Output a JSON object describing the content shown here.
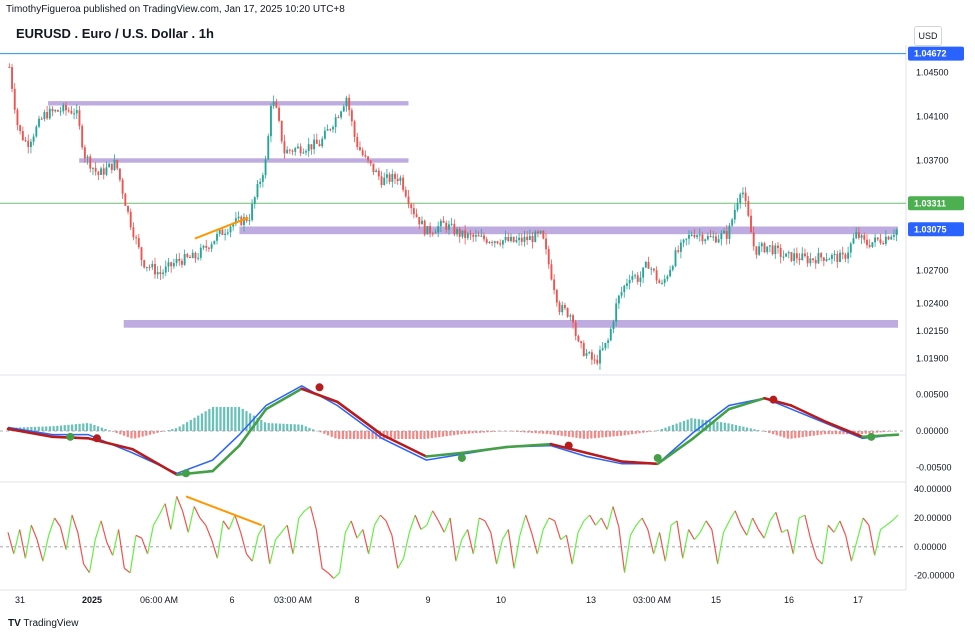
{
  "header": {
    "published": "TimothyFigueroa published on TradingView.com, Jan 17, 2025 10:20 UTC+8",
    "title": "EURUSD . Euro / U.S. Dollar . 1h",
    "currency": "USD",
    "brand": "TradingView"
  },
  "colors": {
    "up": "#26a69a",
    "down": "#ef5350",
    "zone": "#b39ddb",
    "blue_line": "#2196f3",
    "green_line": "#4caf50",
    "macd_fast": "#2962ff",
    "signal_up": "#43a047",
    "signal_down": "#b71c1c",
    "osc_up": "#66ee44",
    "osc_down": "#ef5350",
    "divergence": "#ff9800",
    "price_badge": "#2962ff"
  },
  "chart_data": [
    {
      "type": "candlestick",
      "title": "EURUSD . Euro / U.S. Dollar . 1h",
      "x_tick_labels": [
        "31",
        "2025",
        "06:00 AM",
        "6",
        "03:00 AM",
        "8",
        "9",
        "10",
        "13",
        "03:00 AM",
        "15",
        "16",
        "17"
      ],
      "y_tick_labels": [
        "1.04500",
        "1.04100",
        "1.03700",
        "1.03311",
        "1.03075",
        "1.02700",
        "1.02400",
        "1.02150",
        "1.01900"
      ],
      "ylim": [
        1.0175,
        1.0475
      ],
      "price_labels": {
        "top_line": "1.04672",
        "green_line": "1.03311",
        "last_price": "1.03075"
      },
      "horizontal_levels": [
        1.04672,
        1.03311
      ],
      "zones": [
        {
          "from_t": 0.045,
          "to_t": 0.45,
          "low": 1.042,
          "high": 1.0424
        },
        {
          "from_t": 0.08,
          "to_t": 0.45,
          "low": 1.0368,
          "high": 1.0372
        },
        {
          "from_t": 0.26,
          "to_t": 1.0,
          "low": 1.0303,
          "high": 1.031
        },
        {
          "from_t": 0.13,
          "to_t": 1.0,
          "low": 1.0218,
          "high": 1.0225
        }
      ],
      "trendline": {
        "t": [
          0.21,
          0.27
        ],
        "price": [
          1.0299,
          1.0318
        ]
      },
      "close_path": {
        "t": [
          0,
          0.01,
          0.02,
          0.04,
          0.06,
          0.075,
          0.085,
          0.1,
          0.12,
          0.135,
          0.15,
          0.17,
          0.19,
          0.21,
          0.23,
          0.25,
          0.27,
          0.29,
          0.295,
          0.3,
          0.31,
          0.33,
          0.35,
          0.37,
          0.38,
          0.39,
          0.4,
          0.42,
          0.44,
          0.455,
          0.47,
          0.49,
          0.51,
          0.53,
          0.55,
          0.57,
          0.6,
          0.62,
          0.635,
          0.64,
          0.66,
          0.675,
          0.685,
          0.7,
          0.71,
          0.72,
          0.735,
          0.75,
          0.77,
          0.79,
          0.81,
          0.825,
          0.84,
          0.855,
          0.865,
          0.875,
          0.885,
          0.9,
          0.92,
          0.94,
          0.955,
          0.965,
          0.985,
          1.0
        ],
        "price": [
          1.0455,
          1.0398,
          1.0385,
          1.0412,
          1.0416,
          1.0415,
          1.0375,
          1.0357,
          1.0368,
          1.0318,
          1.0278,
          1.0267,
          1.0279,
          1.0282,
          1.0298,
          1.0312,
          1.0318,
          1.0372,
          1.0425,
          1.0418,
          1.0378,
          1.0382,
          1.0385,
          1.0412,
          1.0428,
          1.0388,
          1.0372,
          1.0352,
          1.0355,
          1.0325,
          1.0305,
          1.0312,
          1.0302,
          1.0299,
          1.0298,
          1.0296,
          1.0302,
          1.0236,
          1.0229,
          1.0203,
          1.0186,
          1.0206,
          1.0242,
          1.0267,
          1.0262,
          1.0277,
          1.0255,
          1.0283,
          1.0305,
          1.0299,
          1.0303,
          1.0348,
          1.0288,
          1.0292,
          1.0287,
          1.0282,
          1.0283,
          1.028,
          1.0283,
          1.0281,
          1.0303,
          1.0294,
          1.0299,
          1.0307
        ]
      }
    },
    {
      "type": "macd",
      "y_tick_labels": [
        "0.00500",
        "0.00000",
        "-0.00500"
      ],
      "ylim": [
        -0.007,
        0.007
      ],
      "fast": {
        "t": [
          0,
          0.05,
          0.09,
          0.14,
          0.19,
          0.23,
          0.26,
          0.29,
          0.33,
          0.37,
          0.42,
          0.47,
          0.51,
          0.56,
          0.61,
          0.65,
          0.69,
          0.73,
          0.77,
          0.81,
          0.85,
          0.88,
          0.92,
          0.96,
          1.0
        ],
        "value": [
          0.0005,
          -0.0005,
          -0.0005,
          -0.003,
          -0.0058,
          -0.004,
          -0.0005,
          0.0035,
          0.0062,
          0.0035,
          -0.001,
          -0.004,
          -0.0032,
          -0.0022,
          -0.002,
          -0.0035,
          -0.0045,
          -0.0045,
          -0.0002,
          0.0035,
          0.0045,
          0.003,
          0.001,
          -0.001,
          -0.0005
        ]
      },
      "signal": {
        "t": [
          0,
          0.05,
          0.09,
          0.14,
          0.19,
          0.23,
          0.26,
          0.29,
          0.33,
          0.37,
          0.42,
          0.47,
          0.51,
          0.56,
          0.61,
          0.65,
          0.69,
          0.73,
          0.77,
          0.81,
          0.85,
          0.88,
          0.92,
          0.96,
          1.0
        ],
        "value": [
          0.0003,
          -0.0008,
          -0.001,
          -0.0025,
          -0.006,
          -0.0055,
          -0.002,
          0.003,
          0.0058,
          0.004,
          -0.0005,
          -0.0035,
          -0.003,
          -0.0022,
          -0.0018,
          -0.003,
          -0.0042,
          -0.0045,
          -0.001,
          0.003,
          0.0045,
          0.0035,
          0.0012,
          -0.0008,
          -0.0005
        ]
      },
      "cross_points": [
        {
          "t": 0.07,
          "value": -0.0008,
          "kind": "up"
        },
        {
          "t": 0.1,
          "value": -0.001,
          "kind": "down"
        },
        {
          "t": 0.2,
          "value": -0.0058,
          "kind": "up"
        },
        {
          "t": 0.35,
          "value": 0.006,
          "kind": "down"
        },
        {
          "t": 0.51,
          "value": -0.0037,
          "kind": "up"
        },
        {
          "t": 0.63,
          "value": -0.002,
          "kind": "down"
        },
        {
          "t": 0.73,
          "value": -0.0037,
          "kind": "up"
        },
        {
          "t": 0.86,
          "value": 0.0043,
          "kind": "down"
        },
        {
          "t": 0.97,
          "value": -0.0008,
          "kind": "up"
        }
      ]
    },
    {
      "type": "oscillator",
      "y_tick_labels": [
        "40.00000",
        "20.00000",
        "0.00000",
        "-20.00000"
      ],
      "ylim": [
        -30,
        45
      ],
      "zero_line": 0,
      "divergence": {
        "t": [
          0.2,
          0.285
        ],
        "value": [
          35,
          15
        ]
      },
      "values": [
        10,
        -5,
        12,
        -8,
        15,
        5,
        -10,
        8,
        20,
        14,
        -2,
        22,
        10,
        -12,
        -18,
        5,
        18,
        3,
        -6,
        12,
        -15,
        -18,
        8,
        6,
        -5,
        15,
        22,
        30,
        12,
        35,
        25,
        10,
        28,
        20,
        15,
        5,
        -8,
        18,
        12,
        22,
        10,
        -5,
        -10,
        8,
        15,
        -12,
        5,
        10,
        15,
        -5,
        20,
        25,
        28,
        12,
        -15,
        -18,
        -22,
        -18,
        10,
        18,
        6,
        12,
        -5,
        15,
        22,
        18,
        8,
        -15,
        -8,
        10,
        22,
        12,
        15,
        25,
        18,
        10,
        20,
        -10,
        5,
        12,
        -5,
        20,
        18,
        10,
        -12,
        5,
        12,
        -15,
        8,
        22,
        10,
        -5,
        12,
        20,
        18,
        5,
        8,
        -12,
        10,
        18,
        22,
        15,
        20,
        12,
        28,
        14,
        -18,
        8,
        15,
        20,
        12,
        -5,
        10,
        -10,
        15,
        18,
        -8,
        12,
        5,
        10,
        18,
        12,
        -12,
        10,
        18,
        25,
        15,
        8,
        20,
        12,
        6,
        18,
        24,
        10,
        12,
        -5,
        20,
        22,
        5,
        -8,
        -12,
        15,
        10,
        18,
        8,
        -10,
        5,
        20,
        15,
        -6,
        12,
        15,
        18,
        22
      ]
    }
  ]
}
